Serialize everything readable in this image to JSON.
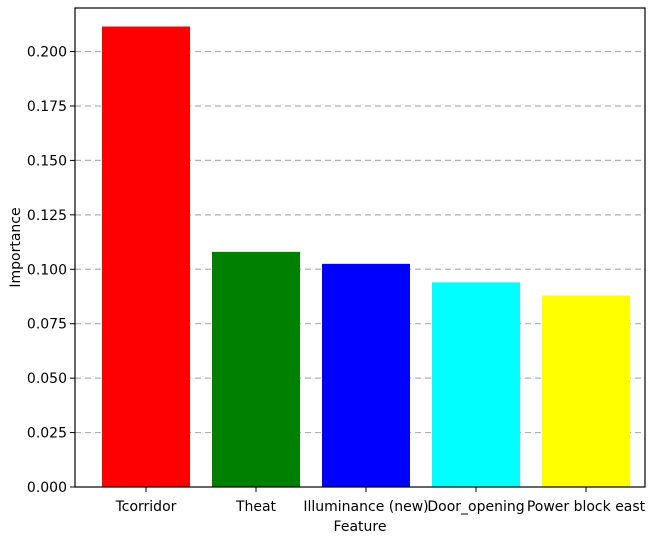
{
  "chart_data": {
    "type": "bar",
    "categories": [
      "Tcorridor",
      "Theat",
      "Illuminance (new)",
      "Door_opening",
      "Power block east"
    ],
    "values": [
      0.2115,
      0.108,
      0.1025,
      0.094,
      0.088
    ],
    "colors": [
      "#ff0000",
      "#008000",
      "#0000ff",
      "#00ffff",
      "#ffff00"
    ],
    "xlabel": "Feature",
    "ylabel": "Importance",
    "ylim": [
      0,
      0.22
    ],
    "yticks": [
      0.0,
      0.025,
      0.05,
      0.075,
      0.1,
      0.125,
      0.15,
      0.175,
      0.2
    ],
    "ytick_labels": [
      "0.000",
      "0.025",
      "0.050",
      "0.075",
      "0.100",
      "0.125",
      "0.150",
      "0.175",
      "0.200"
    ],
    "grid": {
      "axis": "y",
      "style": "dashed",
      "color": "#b0b0b0"
    },
    "legend": "none"
  }
}
